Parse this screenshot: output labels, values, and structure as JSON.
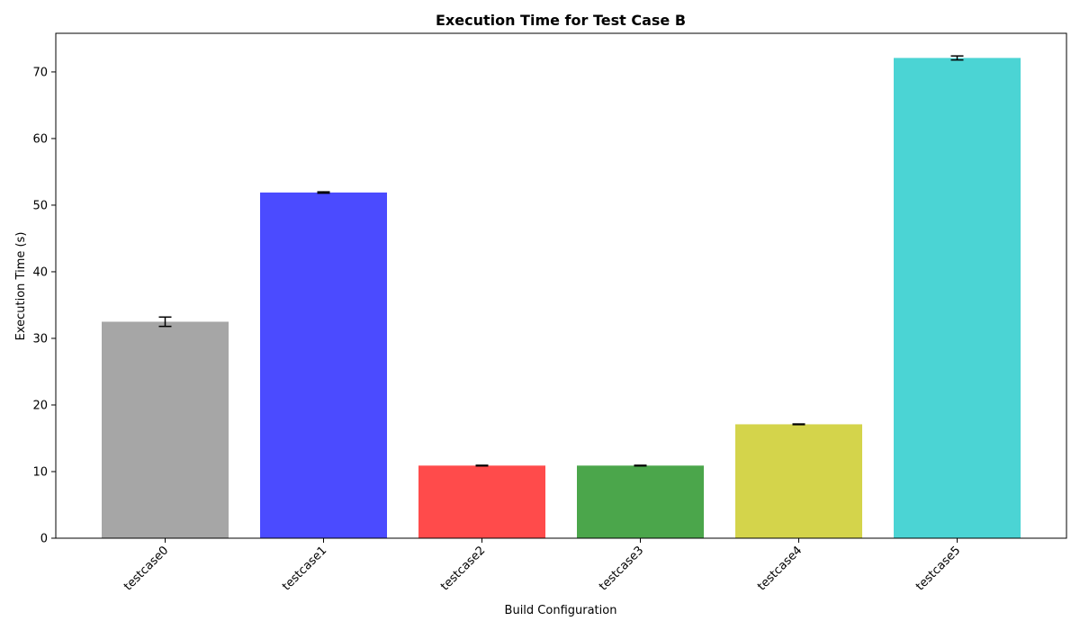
{
  "chart_data": {
    "type": "bar",
    "title": "Execution Time for Test Case B",
    "xlabel": "Build Configuration",
    "ylabel": "Execution Time (s)",
    "categories": [
      "testcase0",
      "testcase1",
      "testcase2",
      "testcase3",
      "testcase4",
      "testcase5"
    ],
    "values": [
      32.5,
      51.9,
      10.9,
      10.9,
      17.1,
      72.1
    ],
    "errors": [
      0.7,
      0.1,
      0.05,
      0.05,
      0.05,
      0.3
    ],
    "colors": [
      "#a6a6a6",
      "#4b4bff",
      "#ff4b4b",
      "#4ba64b",
      "#d4d44b",
      "#4bd4d4"
    ],
    "ylim": [
      0,
      75.8
    ],
    "yticks": [
      0,
      10,
      20,
      30,
      40,
      50,
      60,
      70
    ],
    "grid": false,
    "legend": "none"
  }
}
